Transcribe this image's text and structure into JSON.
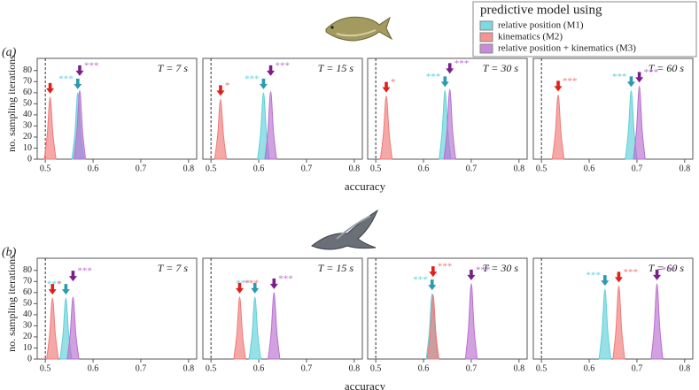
{
  "legend": {
    "title": "predictive model using"
  },
  "rows": [
    {
      "label": "(a)",
      "ylabel": "no. sampling iterations",
      "xlabel": "accuracy"
    },
    {
      "label": "(b)",
      "ylabel": "no. sampling iterations",
      "xlabel": "accuracy"
    }
  ],
  "chart_data": [
    {
      "type": "density",
      "annotation": "T = 7 s",
      "xlim": [
        0.483,
        0.817
      ],
      "ylim": [
        0,
        91
      ],
      "xticks": [
        0.5,
        0.6,
        0.7,
        0.8
      ],
      "yticks": [
        0,
        10,
        20,
        30,
        40,
        50,
        60,
        70,
        80
      ],
      "reference_line": 0.5,
      "series": [
        {
          "name": "relative position (M1)",
          "color": "#5ecfd9",
          "label_color": "#2a9bb0",
          "significance": "***",
          "x": [
            0.556,
            0.562,
            0.568,
            0.574,
            0.58
          ],
          "values": [
            1,
            24,
            60,
            24,
            1
          ]
        },
        {
          "name": "kinematics (M2)",
          "color": "#f07a78",
          "label_color": "#e0201a",
          "x": [
            0.498,
            0.504,
            0.51,
            0.516,
            0.522
          ],
          "values": [
            1,
            22,
            56,
            22,
            1
          ]
        },
        {
          "name": "relative position + kinematics (M3)",
          "color": "#b96fd0",
          "label_color": "#7a1f8a",
          "significance": "***",
          "x": [
            0.56,
            0.566,
            0.572,
            0.578,
            0.584
          ],
          "values": [
            1,
            25,
            62,
            25,
            1
          ]
        }
      ]
    },
    {
      "type": "density",
      "annotation": "T = 15 s",
      "xlim": [
        0.483,
        0.817
      ],
      "ylim": [
        0,
        91
      ],
      "xticks": [
        0.5,
        0.6,
        0.7,
        0.8
      ],
      "reference_line": 0.5,
      "series": [
        {
          "color": "#5ecfd9",
          "label_color": "#2a9bb0",
          "significance": "***",
          "x": [
            0.598,
            0.604,
            0.61,
            0.616,
            0.622
          ],
          "values": [
            1,
            24,
            60,
            24,
            1
          ]
        },
        {
          "color": "#f07a78",
          "label_color": "#e0201a",
          "significance": "*",
          "x": [
            0.508,
            0.514,
            0.52,
            0.526,
            0.532
          ],
          "values": [
            1,
            22,
            54,
            22,
            1
          ]
        },
        {
          "color": "#b96fd0",
          "label_color": "#7a1f8a",
          "significance": "***",
          "x": [
            0.613,
            0.619,
            0.625,
            0.631,
            0.637
          ],
          "values": [
            1,
            24,
            61,
            24,
            1
          ]
        }
      ]
    },
    {
      "type": "density",
      "annotation": "T = 30 s",
      "xlim": [
        0.483,
        0.817
      ],
      "ylim": [
        0,
        91
      ],
      "xticks": [
        0.5,
        0.6,
        0.7,
        0.8
      ],
      "reference_line": 0.5,
      "series": [
        {
          "color": "#5ecfd9",
          "label_color": "#2a9bb0",
          "significance": "***",
          "x": [
            0.633,
            0.639,
            0.645,
            0.651,
            0.657
          ],
          "values": [
            1,
            25,
            62,
            25,
            1
          ]
        },
        {
          "color": "#f07a78",
          "label_color": "#e0201a",
          "significance": "*",
          "x": [
            0.51,
            0.516,
            0.522,
            0.528,
            0.534
          ],
          "values": [
            1,
            23,
            57,
            23,
            1
          ]
        },
        {
          "color": "#b96fd0",
          "label_color": "#7a1f8a",
          "significance": "***",
          "x": [
            0.643,
            0.649,
            0.655,
            0.661,
            0.667
          ],
          "values": [
            1,
            25,
            63,
            25,
            1
          ]
        }
      ]
    },
    {
      "type": "density",
      "annotation": "T = 60 s",
      "xlim": [
        0.483,
        0.817
      ],
      "ylim": [
        0,
        91
      ],
      "xticks": [
        0.5,
        0.6,
        0.7,
        0.8
      ],
      "reference_line": 0.5,
      "series": [
        {
          "color": "#5ecfd9",
          "label_color": "#2a9bb0",
          "significance": "***",
          "x": [
            0.676,
            0.682,
            0.688,
            0.694,
            0.7
          ],
          "values": [
            1,
            25,
            62,
            25,
            1
          ]
        },
        {
          "color": "#f07a78",
          "label_color": "#e0201a",
          "significance": "***",
          "x": [
            0.523,
            0.529,
            0.535,
            0.541,
            0.547
          ],
          "values": [
            1,
            23,
            58,
            23,
            1
          ]
        },
        {
          "color": "#b96fd0",
          "label_color": "#7a1f8a",
          "significance": "***",
          "x": [
            0.693,
            0.699,
            0.705,
            0.711,
            0.717
          ],
          "values": [
            1,
            26,
            66,
            26,
            1
          ]
        }
      ]
    },
    {
      "type": "density",
      "annotation": "T = 7 s",
      "xlim": [
        0.483,
        0.817
      ],
      "ylim": [
        0,
        91
      ],
      "xticks": [
        0.5,
        0.6,
        0.7,
        0.8
      ],
      "yticks": [
        0,
        10,
        20,
        30,
        40,
        50,
        60,
        70,
        80
      ],
      "reference_line": 0.5,
      "series": [
        {
          "color": "#5ecfd9",
          "label_color": "#2a9bb0",
          "significance": "***",
          "x": [
            0.531,
            0.537,
            0.543,
            0.549,
            0.555
          ],
          "values": [
            1,
            22,
            55,
            22,
            1
          ]
        },
        {
          "color": "#f07a78",
          "label_color": "#e0201a",
          "significance": "*",
          "x": [
            0.503,
            0.509,
            0.515,
            0.521,
            0.527
          ],
          "values": [
            1,
            22,
            55,
            22,
            1
          ]
        },
        {
          "color": "#b96fd0",
          "label_color": "#7a1f8a",
          "significance": "***",
          "x": [
            0.546,
            0.552,
            0.558,
            0.564,
            0.57
          ],
          "values": [
            1,
            22,
            56,
            22,
            1
          ]
        }
      ]
    },
    {
      "type": "density",
      "annotation": "T = 15 s",
      "xlim": [
        0.483,
        0.817
      ],
      "ylim": [
        0,
        91
      ],
      "xticks": [
        0.5,
        0.6,
        0.7,
        0.8
      ],
      "reference_line": 0.5,
      "series": [
        {
          "color": "#5ecfd9",
          "label_color": "#2a9bb0",
          "significance": "***",
          "x": [
            0.58,
            0.586,
            0.592,
            0.598,
            0.604
          ],
          "values": [
            1,
            22,
            56,
            22,
            1
          ]
        },
        {
          "color": "#f07a78",
          "label_color": "#e0201a",
          "significance": "***",
          "x": [
            0.548,
            0.554,
            0.56,
            0.566,
            0.572
          ],
          "values": [
            1,
            22,
            56,
            22,
            1
          ]
        },
        {
          "color": "#b96fd0",
          "label_color": "#7a1f8a",
          "significance": "***",
          "x": [
            0.62,
            0.626,
            0.632,
            0.638,
            0.644
          ],
          "values": [
            1,
            24,
            60,
            24,
            1
          ]
        }
      ]
    },
    {
      "type": "density",
      "annotation": "T = 30 s",
      "xlim": [
        0.483,
        0.817
      ],
      "ylim": [
        0,
        91
      ],
      "xticks": [
        0.5,
        0.6,
        0.7,
        0.8
      ],
      "reference_line": 0.5,
      "series": [
        {
          "color": "#5ecfd9",
          "label_color": "#2a9bb0",
          "significance": "***",
          "x": [
            0.606,
            0.612,
            0.618,
            0.624,
            0.63
          ],
          "values": [
            1,
            24,
            59,
            24,
            1
          ]
        },
        {
          "color": "#f07a78",
          "label_color": "#e0201a",
          "significance": "***",
          "x": [
            0.608,
            0.614,
            0.62,
            0.626,
            0.632
          ],
          "values": [
            1,
            23,
            58,
            23,
            1
          ]
        },
        {
          "color": "#b96fd0",
          "label_color": "#7a1f8a",
          "significance": "***",
          "x": [
            0.688,
            0.694,
            0.7,
            0.706,
            0.712
          ],
          "values": [
            1,
            27,
            68,
            27,
            1
          ]
        }
      ]
    },
    {
      "type": "density",
      "annotation": "T = 60 s",
      "xlim": [
        0.483,
        0.817
      ],
      "ylim": [
        0,
        91
      ],
      "xticks": [
        0.5,
        0.6,
        0.7,
        0.8
      ],
      "reference_line": 0.5,
      "series": [
        {
          "color": "#5ecfd9",
          "label_color": "#2a9bb0",
          "significance": "***",
          "x": [
            0.621,
            0.627,
            0.633,
            0.639,
            0.645
          ],
          "values": [
            1,
            25,
            63,
            25,
            1
          ]
        },
        {
          "color": "#f07a78",
          "label_color": "#e0201a",
          "significance": "***",
          "x": [
            0.65,
            0.656,
            0.662,
            0.668,
            0.674
          ],
          "values": [
            1,
            26,
            66,
            26,
            1
          ]
        },
        {
          "color": "#b96fd0",
          "label_color": "#7a1f8a",
          "significance": "***",
          "x": [
            0.73,
            0.736,
            0.742,
            0.748,
            0.754
          ],
          "values": [
            1,
            27,
            68,
            27,
            1
          ]
        }
      ]
    }
  ]
}
